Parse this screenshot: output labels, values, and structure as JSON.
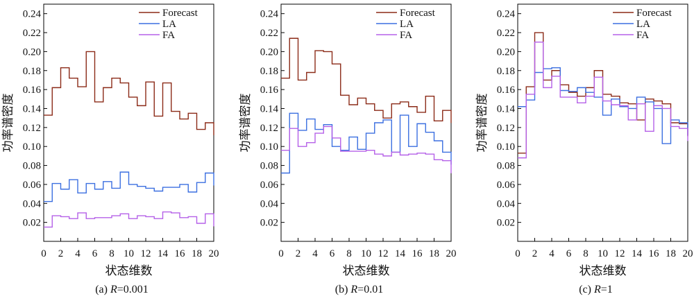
{
  "figure": {
    "ylabel": "功率谱密度",
    "xlabel": "状态维数"
  },
  "colors": {
    "Forecast": "#8b2a17",
    "LA": "#3b6fe0",
    "FA": "#b560e8",
    "axis": "#000000"
  },
  "chart_data": [
    {
      "type": "line",
      "step": true,
      "caption": "(a) R=0.001",
      "caption_prefix": "(a) ",
      "caption_var": "R",
      "caption_value": "=0.001",
      "xlabel": "状态维数",
      "ylabel": "功率谱密度",
      "xlim": [
        0,
        20
      ],
      "ylim": [
        0,
        0.25
      ],
      "xticks": [
        0,
        2,
        4,
        6,
        8,
        10,
        12,
        14,
        16,
        18,
        20
      ],
      "xtick_labels": [
        "0",
        "2",
        "4",
        "6",
        "8",
        "10",
        "12",
        "14",
        "16",
        "18",
        "20"
      ],
      "yticks": [
        0.02,
        0.04,
        0.06,
        0.08,
        0.1,
        0.12,
        0.14,
        0.16,
        0.18,
        0.2,
        0.22,
        0.24
      ],
      "ytick_labels": [
        "0.02",
        "0.04",
        "0.06",
        "0.08",
        "0.10",
        "0.12",
        "0.14",
        "0.16",
        "0.18",
        "0.20",
        "0.22",
        "0.24"
      ],
      "legend": [
        "Forecast",
        "LA",
        "FA"
      ],
      "legend_position": "top-right",
      "grid": false,
      "series": [
        {
          "name": "Forecast",
          "values": [
            0.133,
            0.162,
            0.183,
            0.172,
            0.163,
            0.2,
            0.147,
            0.162,
            0.172,
            0.167,
            0.152,
            0.143,
            0.168,
            0.132,
            0.167,
            0.137,
            0.129,
            0.135,
            0.118,
            0.125
          ]
        },
        {
          "name": "LA",
          "values": [
            0.042,
            0.061,
            0.055,
            0.065,
            0.051,
            0.061,
            0.055,
            0.063,
            0.056,
            0.073,
            0.06,
            0.058,
            0.056,
            0.053,
            0.057,
            0.057,
            0.06,
            0.052,
            0.062,
            0.072
          ]
        },
        {
          "name": "FA",
          "values": [
            0.015,
            0.027,
            0.026,
            0.024,
            0.03,
            0.024,
            0.025,
            0.025,
            0.027,
            0.029,
            0.024,
            0.027,
            0.026,
            0.024,
            0.031,
            0.03,
            0.025,
            0.026,
            0.019,
            0.029
          ]
        }
      ]
    },
    {
      "type": "line",
      "step": true,
      "caption": "(b) R=0.01",
      "caption_prefix": "(b) ",
      "caption_var": "R",
      "caption_value": "=0.01",
      "xlabel": "状态维数",
      "ylabel": "功率谱密度",
      "xlim": [
        0,
        20
      ],
      "ylim": [
        0,
        0.25
      ],
      "xticks": [
        0,
        2,
        4,
        6,
        8,
        10,
        12,
        14,
        16,
        18,
        20
      ],
      "xtick_labels": [
        "0",
        "2",
        "4",
        "6",
        "8",
        "10",
        "12",
        "14",
        "16",
        "18",
        "20"
      ],
      "yticks": [
        0.02,
        0.04,
        0.06,
        0.08,
        0.1,
        0.12,
        0.14,
        0.16,
        0.18,
        0.2,
        0.22,
        0.24
      ],
      "ytick_labels": [
        "0.02",
        "0.04",
        "0.06",
        "0.08",
        "0.10",
        "0.12",
        "0.14",
        "0.16",
        "0.18",
        "0.20",
        "0.22",
        "0.24"
      ],
      "legend": [
        "Forecast",
        "LA",
        "FA"
      ],
      "legend_position": "top-right",
      "grid": false,
      "series": [
        {
          "name": "Forecast",
          "values": [
            0.172,
            0.214,
            0.17,
            0.178,
            0.201,
            0.2,
            0.187,
            0.154,
            0.144,
            0.151,
            0.145,
            0.138,
            0.13,
            0.145,
            0.147,
            0.142,
            0.136,
            0.153,
            0.127,
            0.138
          ]
        },
        {
          "name": "LA",
          "values": [
            0.072,
            0.135,
            0.117,
            0.129,
            0.118,
            0.123,
            0.1,
            0.096,
            0.11,
            0.097,
            0.114,
            0.125,
            0.128,
            0.094,
            0.133,
            0.1,
            0.124,
            0.115,
            0.106,
            0.094
          ]
        },
        {
          "name": "FA",
          "values": [
            0.096,
            0.119,
            0.1,
            0.104,
            0.114,
            0.121,
            0.109,
            0.095,
            0.095,
            0.095,
            0.096,
            0.092,
            0.09,
            0.094,
            0.091,
            0.092,
            0.093,
            0.092,
            0.086,
            0.085
          ]
        }
      ]
    },
    {
      "type": "line",
      "step": true,
      "caption": "(c) R=1",
      "caption_prefix": "(c) ",
      "caption_var": "R",
      "caption_value": "=1",
      "xlabel": "状态维数",
      "ylabel": "功率谱密度",
      "xlim": [
        0,
        20
      ],
      "ylim": [
        0,
        0.25
      ],
      "xticks": [
        0,
        2,
        4,
        6,
        8,
        10,
        12,
        14,
        16,
        18,
        20
      ],
      "xtick_labels": [
        "0",
        "2",
        "4",
        "6",
        "8",
        "10",
        "12",
        "14",
        "16",
        "18",
        "20"
      ],
      "yticks": [
        0.02,
        0.04,
        0.06,
        0.08,
        0.1,
        0.12,
        0.14,
        0.16,
        0.18,
        0.2,
        0.22,
        0.24
      ],
      "ytick_labels": [
        "0.02",
        "0.04",
        "0.06",
        "0.08",
        "0.10",
        "0.12",
        "0.14",
        "0.16",
        "0.18",
        "0.20",
        "0.22",
        "0.24"
      ],
      "legend": [
        "Forecast",
        "LA",
        "FA"
      ],
      "legend_position": "top-right",
      "grid": false,
      "series": [
        {
          "name": "Forecast",
          "values": [
            0.093,
            0.163,
            0.22,
            0.17,
            0.18,
            0.165,
            0.157,
            0.153,
            0.162,
            0.18,
            0.155,
            0.153,
            0.146,
            0.145,
            0.128,
            0.15,
            0.148,
            0.145,
            0.125,
            0.124
          ]
        },
        {
          "name": "LA",
          "values": [
            0.142,
            0.149,
            0.178,
            0.182,
            0.183,
            0.159,
            0.158,
            0.162,
            0.157,
            0.152,
            0.133,
            0.15,
            0.142,
            0.14,
            0.152,
            0.147,
            0.14,
            0.103,
            0.128,
            0.125
          ]
        },
        {
          "name": "FA",
          "values": [
            0.088,
            0.155,
            0.21,
            0.162,
            0.174,
            0.152,
            0.152,
            0.146,
            0.153,
            0.173,
            0.148,
            0.144,
            0.143,
            0.128,
            0.145,
            0.116,
            0.143,
            0.14,
            0.121,
            0.119
          ]
        }
      ]
    }
  ]
}
